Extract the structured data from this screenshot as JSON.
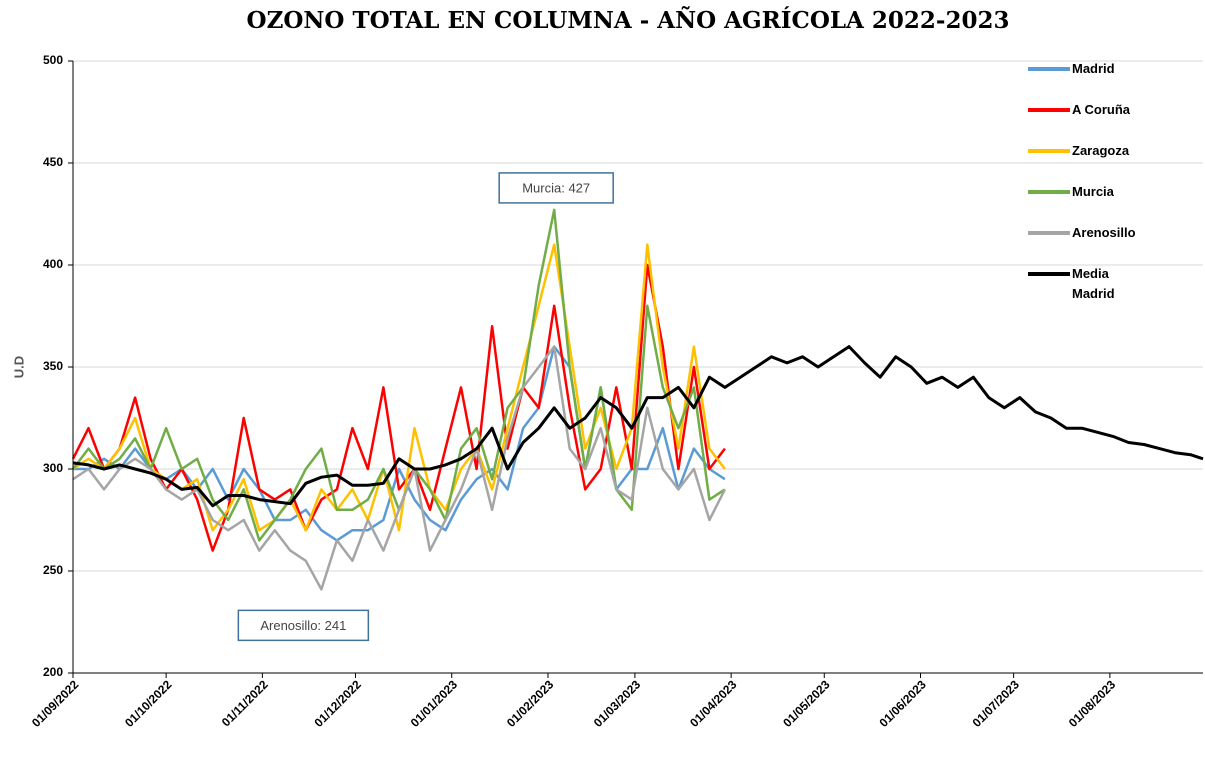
{
  "chart_data": {
    "type": "line",
    "title": "OZONO TOTAL EN COLUMNA - AÑO AGRÍCOLA 2022-2023",
    "y_label": "U.D",
    "x": [
      "2022-09-01",
      "2022-09-06",
      "2022-09-11",
      "2022-09-16",
      "2022-09-21",
      "2022-09-26",
      "2022-10-01",
      "2022-10-06",
      "2022-10-11",
      "2022-10-16",
      "2022-10-21",
      "2022-10-26",
      "2022-10-31",
      "2022-11-05",
      "2022-11-10",
      "2022-11-15",
      "2022-11-20",
      "2022-11-25",
      "2022-11-30",
      "2022-12-05",
      "2022-12-10",
      "2022-12-15",
      "2022-12-20",
      "2022-12-25",
      "2022-12-30",
      "2023-01-04",
      "2023-01-09",
      "2023-01-14",
      "2023-01-19",
      "2023-01-24",
      "2023-01-29",
      "2023-02-03",
      "2023-02-08",
      "2023-02-13",
      "2023-02-18",
      "2023-02-23",
      "2023-02-28",
      "2023-03-05",
      "2023-03-10",
      "2023-03-15",
      "2023-03-20",
      "2023-03-25",
      "2023-03-30",
      "2023-04-04",
      "2023-04-09",
      "2023-04-14",
      "2023-04-19",
      "2023-04-24",
      "2023-04-29",
      "2023-05-04",
      "2023-05-09",
      "2023-05-14",
      "2023-05-19",
      "2023-05-24",
      "2023-05-29",
      "2023-06-03",
      "2023-06-08",
      "2023-06-13",
      "2023-06-18",
      "2023-06-23",
      "2023-06-28",
      "2023-07-03",
      "2023-07-08",
      "2023-07-13",
      "2023-07-18",
      "2023-07-23",
      "2023-07-28",
      "2023-08-02",
      "2023-08-07",
      "2023-08-12",
      "2023-08-17",
      "2023-08-22",
      "2023-08-27",
      "2023-08-31"
    ],
    "xlim": [
      "2022-09-01",
      "2023-08-31"
    ],
    "xticks": [
      {
        "value": "2022-09-01",
        "label": "01/09/2022"
      },
      {
        "value": "2022-10-01",
        "label": "01/10/2022"
      },
      {
        "value": "2022-11-01",
        "label": "01/11/2022"
      },
      {
        "value": "2022-12-01",
        "label": "01/12/2022"
      },
      {
        "value": "2023-01-01",
        "label": "01/01/2023"
      },
      {
        "value": "2023-02-01",
        "label": "01/02/2023"
      },
      {
        "value": "2023-03-01",
        "label": "01/03/2023"
      },
      {
        "value": "2023-04-01",
        "label": "01/04/2023"
      },
      {
        "value": "2023-05-01",
        "label": "01/05/2023"
      },
      {
        "value": "2023-06-01",
        "label": "01/06/2023"
      },
      {
        "value": "2023-07-01",
        "label": "01/07/2023"
      },
      {
        "value": "2023-08-01",
        "label": "01/08/2023"
      }
    ],
    "ylim": [
      200,
      500
    ],
    "yticks": [
      200,
      250,
      300,
      350,
      400,
      450,
      500
    ],
    "grid": true,
    "legend": "right",
    "series": [
      {
        "name": "Madrid",
        "color": "#5b9bd5",
        "values": [
          300,
          300,
          305,
          300,
          310,
          300,
          295,
          300,
          290,
          300,
          285,
          300,
          290,
          275,
          275,
          280,
          270,
          265,
          270,
          270,
          275,
          300,
          285,
          275,
          270,
          285,
          295,
          300,
          290,
          320,
          330,
          360,
          350,
          300,
          340,
          290,
          300,
          300,
          320,
          290,
          310,
          300,
          295,
          null,
          null,
          null,
          null,
          null,
          null,
          null,
          null,
          null,
          null,
          null,
          null,
          null,
          null,
          null,
          null,
          null,
          null,
          null,
          null,
          null,
          null,
          null,
          null,
          null,
          null,
          null,
          null,
          null,
          null,
          null
        ]
      },
      {
        "name": "A Coruña",
        "color": "#ff0000",
        "values": [
          305,
          320,
          300,
          310,
          335,
          305,
          290,
          300,
          285,
          260,
          280,
          325,
          290,
          285,
          290,
          270,
          285,
          290,
          320,
          300,
          340,
          290,
          300,
          280,
          310,
          340,
          300,
          370,
          310,
          340,
          330,
          380,
          330,
          290,
          300,
          340,
          300,
          400,
          360,
          300,
          350,
          300,
          310,
          null,
          null,
          null,
          null,
          null,
          null,
          null,
          null,
          null,
          null,
          null,
          null,
          null,
          null,
          null,
          null,
          null,
          null,
          null,
          null,
          null,
          null,
          null,
          null,
          null,
          null,
          null,
          null,
          null,
          null,
          null
        ]
      },
      {
        "name": "Zaragoza",
        "color": "#ffc000",
        "values": [
          300,
          305,
          300,
          310,
          325,
          300,
          295,
          290,
          295,
          270,
          280,
          295,
          270,
          275,
          285,
          270,
          290,
          280,
          290,
          275,
          300,
          270,
          320,
          290,
          280,
          300,
          310,
          290,
          320,
          350,
          380,
          410,
          360,
          310,
          330,
          300,
          320,
          410,
          350,
          310,
          360,
          310,
          300,
          null,
          null,
          null,
          null,
          null,
          null,
          null,
          null,
          null,
          null,
          null,
          null,
          null,
          null,
          null,
          null,
          null,
          null,
          null,
          null,
          null,
          null,
          null,
          null,
          null,
          null,
          null,
          null,
          null,
          null,
          null
        ]
      },
      {
        "name": "Murcia",
        "color": "#70ad47",
        "values": [
          300,
          310,
          300,
          305,
          315,
          300,
          320,
          300,
          305,
          285,
          275,
          290,
          265,
          275,
          285,
          300,
          310,
          280,
          280,
          285,
          300,
          280,
          300,
          290,
          275,
          310,
          320,
          295,
          330,
          340,
          390,
          427,
          350,
          300,
          340,
          290,
          280,
          380,
          340,
          320,
          340,
          285,
          290,
          null,
          null,
          null,
          null,
          null,
          null,
          null,
          null,
          null,
          null,
          null,
          null,
          null,
          null,
          null,
          null,
          null,
          null,
          null,
          null,
          null,
          null,
          null,
          null,
          null,
          null,
          null,
          null,
          null,
          null,
          null
        ]
      },
      {
        "name": "Arenosillo",
        "color": "#a5a5a5",
        "values": [
          295,
          300,
          290,
          300,
          305,
          300,
          290,
          285,
          290,
          275,
          270,
          275,
          260,
          270,
          260,
          255,
          241,
          265,
          255,
          275,
          260,
          280,
          300,
          260,
          275,
          290,
          310,
          280,
          315,
          340,
          350,
          360,
          310,
          300,
          320,
          290,
          285,
          330,
          300,
          290,
          300,
          275,
          290,
          null,
          null,
          null,
          null,
          null,
          null,
          null,
          null,
          null,
          null,
          null,
          null,
          null,
          null,
          null,
          null,
          null,
          null,
          null,
          null,
          null,
          null,
          null,
          null,
          null,
          null,
          null,
          null,
          null,
          null,
          null
        ]
      },
      {
        "name": "Media Madrid",
        "color": "#000000",
        "values": [
          303,
          302,
          300,
          302,
          300,
          298,
          295,
          290,
          291,
          282,
          287,
          287,
          285,
          284,
          283,
          293,
          296,
          297,
          292,
          292,
          293,
          305,
          300,
          300,
          302,
          305,
          310,
          320,
          300,
          313,
          320,
          330,
          320,
          325,
          335,
          330,
          320,
          335,
          335,
          340,
          330,
          345,
          340,
          345,
          350,
          355,
          352,
          355,
          350,
          355,
          360,
          352,
          345,
          355,
          350,
          342,
          345,
          340,
          345,
          335,
          330,
          335,
          328,
          325,
          320,
          320,
          318,
          316,
          313,
          312,
          310,
          308,
          307,
          305
        ]
      }
    ],
    "annotations": [
      {
        "text": "Murcia: 427",
        "x": "2023-02-03",
        "y": 427
      },
      {
        "text": "Arenosillo: 241",
        "x": "2022-11-20",
        "y": 241
      }
    ]
  }
}
